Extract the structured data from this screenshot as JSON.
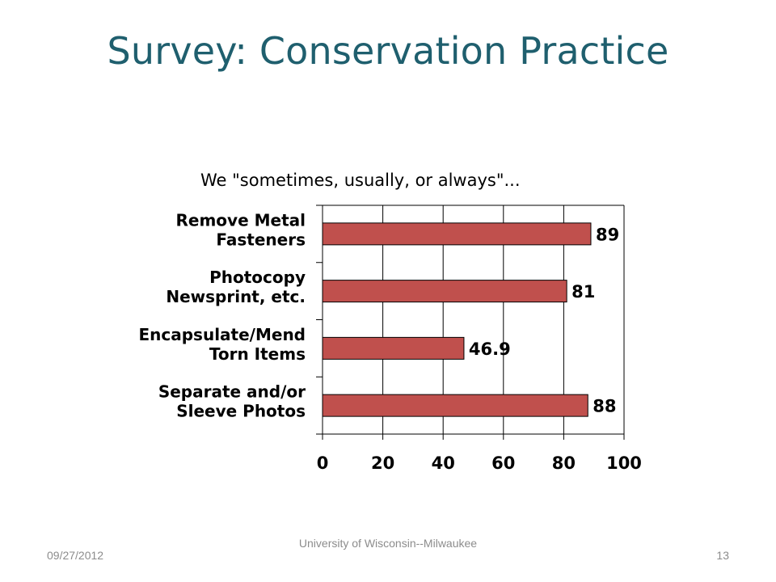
{
  "slide": {
    "title": "Survey:  Conservation Practice"
  },
  "chart_data": {
    "type": "bar",
    "orientation": "horizontal",
    "title": "We \"sometimes, usually, or always\"...",
    "categories": [
      "Remove Metal Fasteners",
      "Photocopy Newsprint, etc.",
      "Encapsulate/Mend Torn Items",
      "Separate and/or Sleeve Photos"
    ],
    "category_lines": [
      [
        "Remove Metal",
        "Fasteners"
      ],
      [
        "Photocopy",
        "Newsprint, etc."
      ],
      [
        "Encapsulate/Mend",
        "Torn Items"
      ],
      [
        "Separate and/or",
        "Sleeve Photos"
      ]
    ],
    "values": [
      89,
      81,
      46.9,
      88
    ],
    "data_labels": [
      "89",
      "81",
      "46.9",
      "88"
    ],
    "xlim": [
      0,
      100
    ],
    "x_ticks": [
      "0",
      "20",
      "40",
      "60",
      "80",
      "100"
    ],
    "grid": true,
    "legend": "none",
    "bar_color": "#c0504d"
  },
  "footer": {
    "org": "University of Wisconsin--Milwaukee",
    "date": "09/27/2012",
    "page": "13"
  }
}
